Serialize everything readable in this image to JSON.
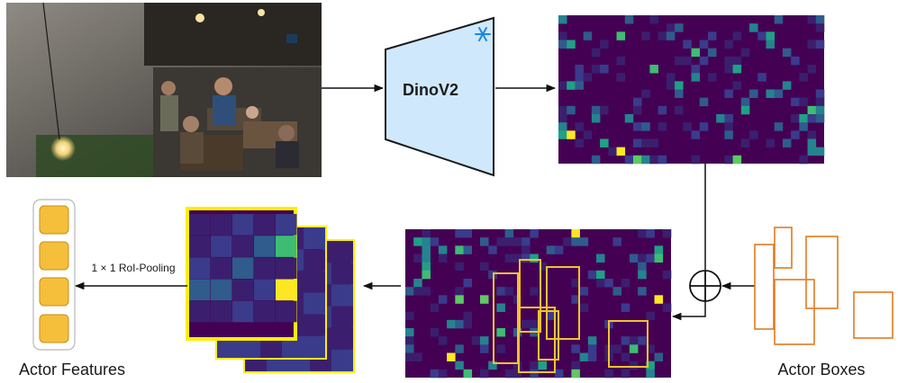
{
  "encoder": {
    "label": "DinoV2",
    "frozen_icon": "snowflake-icon"
  },
  "roi_label": "1 × 1 RoI-Pooling",
  "actor_features_label": "Actor Features",
  "actor_boxes_label": "Actor Boxes",
  "sum_icon": "circle-plus-icon",
  "colors": {
    "encoder_fill": "#cfe8fb",
    "feature_map_bg": "#440154",
    "box_outline_features": "#f2c230",
    "box_outline_actor": "#e07b20",
    "pooled_frame": "#ffee00",
    "feature_cell": "#f5bf3c"
  },
  "feature_count": 4
}
